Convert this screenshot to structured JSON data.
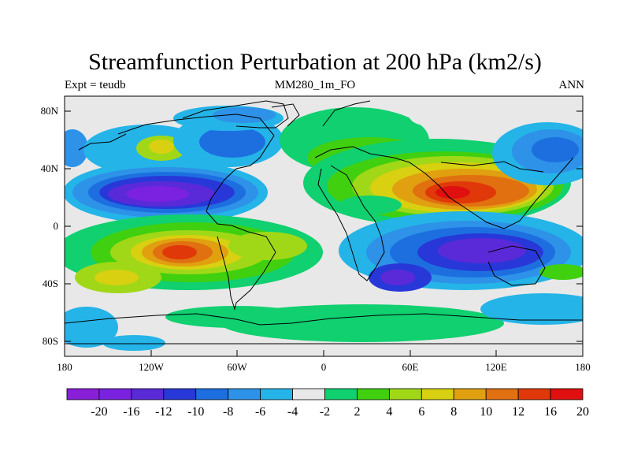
{
  "title": "Streamfunction Perturbation at 200 hPa (km2/s)",
  "subtitle_left": "Expt = teudb",
  "subtitle_center": "MM280_1m_FO",
  "subtitle_right": "ANN",
  "lat_ticks": [
    "80N",
    "40N",
    "0",
    "40S",
    "80S"
  ],
  "lon_ticks": [
    "180",
    "120W",
    "60W",
    "0",
    "60E",
    "120E",
    "180"
  ],
  "colorbar": {
    "labels": [
      "-20",
      "-16",
      "-12",
      "-10",
      "-8",
      "-6",
      "-4",
      "-2",
      "2",
      "4",
      "6",
      "8",
      "10",
      "12",
      "16",
      "20"
    ],
    "colors": [
      "#8a1fd8",
      "#7a22e0",
      "#5a2ad8",
      "#2838d8",
      "#1d6fe0",
      "#2d92e8",
      "#24b4e8",
      "#e8e8e8",
      "#10d070",
      "#40d010",
      "#a0d818",
      "#d8d010",
      "#e0a010",
      "#e07010",
      "#e03808",
      "#e01010"
    ]
  }
}
